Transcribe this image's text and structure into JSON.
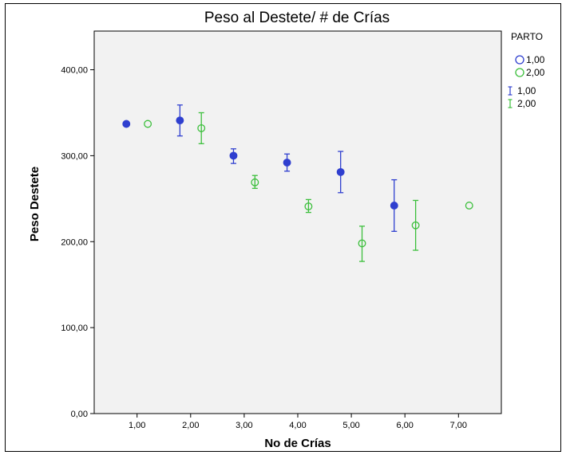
{
  "chart_data": {
    "type": "scatter",
    "title": "Peso al Destete/ # de Crías",
    "xlabel": "No de Crías",
    "ylabel": "Peso Destete",
    "xlim": [
      0.2,
      7.8
    ],
    "ylim": [
      0,
      445
    ],
    "x_ticks": [
      1,
      2,
      3,
      4,
      5,
      6,
      7
    ],
    "x_tick_labels": [
      "1,00",
      "2,00",
      "3,00",
      "4,00",
      "5,00",
      "6,00",
      "7,00"
    ],
    "y_ticks": [
      0,
      100,
      200,
      300,
      400
    ],
    "y_tick_labels": [
      "0,00",
      "100,00",
      "200,00",
      "300,00",
      "400,00"
    ],
    "grid": false,
    "legend_title": "PARTO",
    "legend_position": "right",
    "series": [
      {
        "name": "1,00",
        "color": "#2f3fcf",
        "marker": "filled-circle",
        "points": [
          {
            "x": 1,
            "y": 337,
            "lo": null,
            "hi": null
          },
          {
            "x": 2,
            "y": 341,
            "lo": 323,
            "hi": 359
          },
          {
            "x": 3,
            "y": 300,
            "lo": 291,
            "hi": 308
          },
          {
            "x": 4,
            "y": 292,
            "lo": 282,
            "hi": 302
          },
          {
            "x": 5,
            "y": 281,
            "lo": 257,
            "hi": 305
          },
          {
            "x": 6,
            "y": 242,
            "lo": 212,
            "hi": 272
          }
        ]
      },
      {
        "name": "2,00",
        "color": "#3cbf3c",
        "marker": "open-circle",
        "points": [
          {
            "x": 1,
            "y": 337,
            "lo": null,
            "hi": null
          },
          {
            "x": 2,
            "y": 332,
            "lo": 314,
            "hi": 350
          },
          {
            "x": 3,
            "y": 269,
            "lo": 262,
            "hi": 277
          },
          {
            "x": 4,
            "y": 241,
            "lo": 234,
            "hi": 249
          },
          {
            "x": 5,
            "y": 198,
            "lo": 177,
            "hi": 218
          },
          {
            "x": 6,
            "y": 219,
            "lo": 190,
            "hi": 248
          },
          {
            "x": 7,
            "y": 242,
            "lo": null,
            "hi": null
          }
        ]
      }
    ],
    "legend_errorbar_entries": [
      "1,00",
      "2,00"
    ]
  }
}
